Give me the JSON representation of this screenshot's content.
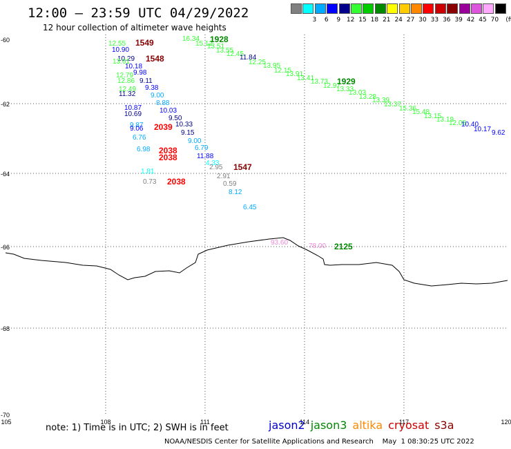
{
  "title": "12:00 – 23:59 UTC 04/29/2022",
  "subtitle": "12 hour collection of altimeter wave heights",
  "legend": {
    "unit": "(ft)",
    "bins": [
      {
        "label": "",
        "color": "#808080"
      },
      {
        "label": "3",
        "color": "#00ffff"
      },
      {
        "label": "6",
        "color": "#00aaff"
      },
      {
        "label": "9",
        "color": "#0000ff"
      },
      {
        "label": "12",
        "color": "#00008b"
      },
      {
        "label": "15",
        "color": "#33ff33"
      },
      {
        "label": "18",
        "color": "#00cc00"
      },
      {
        "label": "21",
        "color": "#008800"
      },
      {
        "label": "24",
        "color": "#ffff00"
      },
      {
        "label": "27",
        "color": "#ffcc00"
      },
      {
        "label": "30",
        "color": "#ff8800"
      },
      {
        "label": "33",
        "color": "#ff0000"
      },
      {
        "label": "36",
        "color": "#cc0000"
      },
      {
        "label": "39",
        "color": "#880000"
      },
      {
        "label": "42",
        "color": "#990099"
      },
      {
        "label": "45",
        "color": "#dd55dd"
      },
      {
        "label": "70",
        "color": "#ffaaff"
      },
      {
        "label": "",
        "color": "#000000"
      }
    ]
  },
  "axes": {
    "lat_labels": [
      "-60",
      "-62",
      "-64",
      "-66",
      "-68",
      "-70"
    ],
    "lon_labels": [
      "105",
      "108",
      "111",
      "114",
      "117",
      "120"
    ]
  },
  "satellites": [
    {
      "name": "jason2",
      "color": "#0000cc"
    },
    {
      "name": "jason3",
      "color": "#008800"
    },
    {
      "name": "altika",
      "color": "#ff8800"
    },
    {
      "name": "cryosat",
      "color": "#cc0000"
    },
    {
      "name": "s3a",
      "color": "#880000"
    }
  ],
  "note": "note:  1) Time is in UTC; 2) SWH is in feet",
  "footer": "NOAA/NESDIS Center for Satellite Applications and Research    May  1 08:30:25 UTC 2022",
  "pass_times": [
    {
      "text": "1549",
      "color": "#880000"
    },
    {
      "text": "1548",
      "color": "#880000"
    },
    {
      "text": "1928",
      "color": "#008800"
    },
    {
      "text": "1929",
      "color": "#008800"
    },
    {
      "text": "2039",
      "color": "#ff0000"
    },
    {
      "text": "2038",
      "color": "#ff0000"
    },
    {
      "text": "2038",
      "color": "#ff0000"
    },
    {
      "text": "1547",
      "color": "#880000"
    },
    {
      "text": "2038",
      "color": "#ff0000"
    },
    {
      "text": "2125",
      "color": "#008800"
    }
  ],
  "wave_heights": [
    {
      "text": "12.55",
      "color": "#33ff33"
    },
    {
      "text": "10.90",
      "color": "#0000ff"
    },
    {
      "text": "10.29",
      "color": "#00008b"
    },
    {
      "text": "13.61",
      "color": "#33ff33"
    },
    {
      "text": "10.18",
      "color": "#0000ff"
    },
    {
      "text": "9.98",
      "color": "#0000ff"
    },
    {
      "text": "12.79",
      "color": "#33ff33"
    },
    {
      "text": "12.86",
      "color": "#33ff33"
    },
    {
      "text": "9.11",
      "color": "#00008b"
    },
    {
      "text": "9.38",
      "color": "#0000ff"
    },
    {
      "text": "12.49",
      "color": "#33ff33"
    },
    {
      "text": "11.32",
      "color": "#00008b"
    },
    {
      "text": "9.00",
      "color": "#00aaff"
    },
    {
      "text": "8.88",
      "color": "#00aaff"
    },
    {
      "text": "10.87",
      "color": "#0000ff"
    },
    {
      "text": "10.69",
      "color": "#00008b"
    },
    {
      "text": "10.03",
      "color": "#0000ff"
    },
    {
      "text": "9.50",
      "color": "#00008b"
    },
    {
      "text": "9.87",
      "color": "#00aaff"
    },
    {
      "text": "9.06",
      "color": "#0000ff"
    },
    {
      "text": "10.33",
      "color": "#00008b"
    },
    {
      "text": "9.15",
      "color": "#00008b"
    },
    {
      "text": "6.76",
      "color": "#00aaff"
    },
    {
      "text": "9.00",
      "color": "#00aaff"
    },
    {
      "text": "6.98",
      "color": "#00aaff"
    },
    {
      "text": "6.79",
      "color": "#00aaff"
    },
    {
      "text": "11.88",
      "color": "#0000ff"
    },
    {
      "text": "4.33",
      "color": "#00ffff"
    },
    {
      "text": "2.95",
      "color": "#808080"
    },
    {
      "text": "1.81",
      "color": "#00ffff"
    },
    {
      "text": "2.91",
      "color": "#808080"
    },
    {
      "text": "0.73",
      "color": "#808080"
    },
    {
      "text": "0.59",
      "color": "#808080"
    },
    {
      "text": "8.12",
      "color": "#00aaff"
    },
    {
      "text": "6.45",
      "color": "#00aaff"
    },
    {
      "text": "16.34",
      "color": "#33ff33"
    },
    {
      "text": "15.12",
      "color": "#33ff33"
    },
    {
      "text": "13.51",
      "color": "#33ff33"
    },
    {
      "text": "13.55",
      "color": "#33ff33"
    },
    {
      "text": "12.45",
      "color": "#33ff33"
    },
    {
      "text": "11.84",
      "color": "#00008b"
    },
    {
      "text": "12.25",
      "color": "#33ff33"
    },
    {
      "text": "13.95",
      "color": "#33ff33"
    },
    {
      "text": "12.15",
      "color": "#33ff33"
    },
    {
      "text": "13.91",
      "color": "#33ff33"
    },
    {
      "text": "13.41",
      "color": "#33ff33"
    },
    {
      "text": "13.73",
      "color": "#33ff33"
    },
    {
      "text": "12.97",
      "color": "#33ff33"
    },
    {
      "text": "13.33",
      "color": "#33ff33"
    },
    {
      "text": "13.03",
      "color": "#33ff33"
    },
    {
      "text": "13.28",
      "color": "#33ff33"
    },
    {
      "text": "13.39",
      "color": "#33ff33"
    },
    {
      "text": "13.37",
      "color": "#33ff33"
    },
    {
      "text": "15.36",
      "color": "#33ff33"
    },
    {
      "text": "15.48",
      "color": "#33ff33"
    },
    {
      "text": "13.15",
      "color": "#33ff33"
    },
    {
      "text": "13.19",
      "color": "#33ff33"
    },
    {
      "text": "12.08",
      "color": "#33ff33"
    },
    {
      "text": "10.40",
      "color": "#0000ff"
    },
    {
      "text": "10.17",
      "color": "#0000ff"
    },
    {
      "text": "9.62",
      "color": "#0000ff"
    },
    {
      "text": "93.60",
      "color": "#ee88dd"
    },
    {
      "text": "78.00",
      "color": "#ee88dd"
    }
  ]
}
